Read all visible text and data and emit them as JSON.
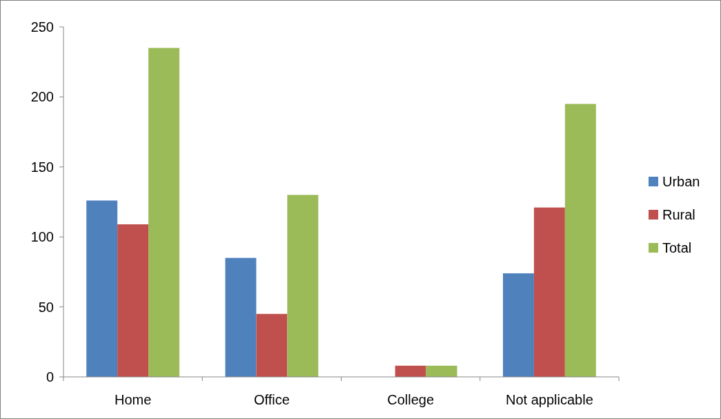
{
  "chart_data": {
    "type": "bar",
    "categories": [
      "Home",
      "Office",
      "College",
      "Not applicable"
    ],
    "series": [
      {
        "name": "Urban",
        "color": "#4f81bd",
        "values": [
          126,
          85,
          0,
          74
        ]
      },
      {
        "name": "Rural",
        "color": "#c0504d",
        "values": [
          109,
          45,
          8,
          121
        ]
      },
      {
        "name": "Total",
        "color": "#9bbb59",
        "values": [
          235,
          130,
          8,
          195
        ]
      }
    ],
    "ylim": [
      0,
      250
    ],
    "yticks": [
      0,
      50,
      100,
      150,
      200,
      250
    ],
    "grid": false,
    "legend": "right"
  }
}
